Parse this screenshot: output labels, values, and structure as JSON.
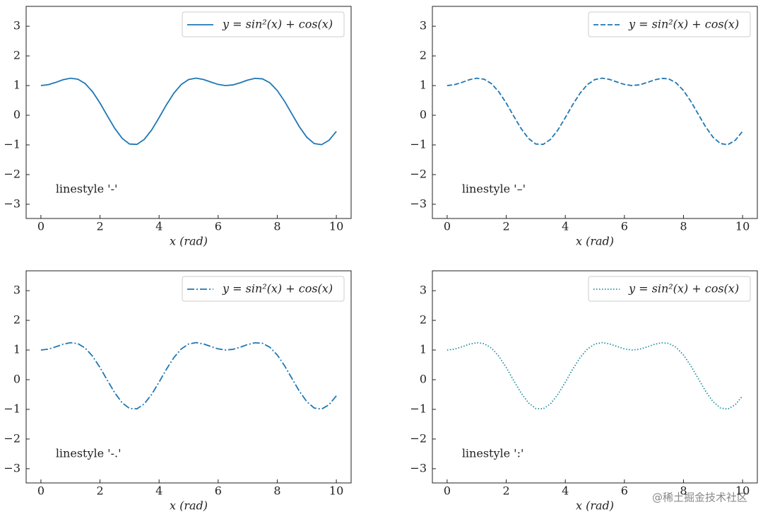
{
  "chart_data": [
    {
      "type": "line",
      "xlabel": "x (rad)",
      "annotation": "linestyle '-'",
      "legend": "upper right",
      "grid": false,
      "xlim": [
        -0.5,
        10.5
      ],
      "ylim": [
        -3.48,
        3.67
      ],
      "xticks": [
        0,
        2,
        4,
        6,
        8,
        10
      ],
      "yticks": [
        {
          "value": -3,
          "label": "−3"
        },
        {
          "value": -2,
          "label": "−2"
        },
        {
          "value": -1,
          "label": "−1"
        },
        0,
        1,
        2,
        3
      ],
      "x": [
        0,
        0.25,
        0.5,
        0.75,
        1,
        1.25,
        1.5,
        1.75,
        2,
        2.25,
        2.5,
        2.75,
        3,
        3.25,
        3.5,
        3.75,
        4,
        4.25,
        4.5,
        4.75,
        5,
        5.25,
        5.5,
        5.75,
        6,
        6.25,
        6.5,
        6.75,
        7,
        7.25,
        7.5,
        7.75,
        8,
        8.25,
        8.5,
        8.75,
        9,
        9.25,
        9.5,
        9.75,
        10
      ],
      "series": [
        {
          "name": "y = sin²(x) + cos(x)",
          "color": "#1f77b4",
          "linestyle": "-",
          "values": [
            1,
            1.03,
            1.107,
            1.196,
            1.248,
            1.216,
            1.066,
            0.79,
            0.411,
            -0.023,
            -0.443,
            -0.779,
            -0.97,
            -0.982,
            -0.813,
            -0.494,
            -0.081,
            0.355,
            0.745,
            1.036,
            1.203,
            1.25,
            1.206,
            1.12,
            1.038,
            1.001,
            1.023,
            1.096,
            1.186,
            1.245,
            1.226,
            1.093,
            0.833,
            0.466,
            0.036,
            -0.391,
            -0.741,
            -0.954,
            -0.992,
            -0.846,
            -0.543
          ]
        }
      ]
    },
    {
      "type": "line",
      "xlabel": "x (rad)",
      "annotation": "linestyle '–'",
      "legend": "upper right",
      "grid": false,
      "xlim": [
        -0.5,
        10.5
      ],
      "ylim": [
        -3.48,
        3.67
      ],
      "xticks": [
        0,
        2,
        4,
        6,
        8,
        10
      ],
      "yticks": [
        {
          "value": -3,
          "label": "−3"
        },
        {
          "value": -2,
          "label": "−2"
        },
        {
          "value": -1,
          "label": "−1"
        },
        0,
        1,
        2,
        3
      ],
      "x": [
        0,
        0.25,
        0.5,
        0.75,
        1,
        1.25,
        1.5,
        1.75,
        2,
        2.25,
        2.5,
        2.75,
        3,
        3.25,
        3.5,
        3.75,
        4,
        4.25,
        4.5,
        4.75,
        5,
        5.25,
        5.5,
        5.75,
        6,
        6.25,
        6.5,
        6.75,
        7,
        7.25,
        7.5,
        7.75,
        8,
        8.25,
        8.5,
        8.75,
        9,
        9.25,
        9.5,
        9.75,
        10
      ],
      "series": [
        {
          "name": "y = sin²(x) + cos(x)",
          "color": "#1f77b4",
          "linestyle": "--",
          "values": [
            1,
            1.03,
            1.107,
            1.196,
            1.248,
            1.216,
            1.066,
            0.79,
            0.411,
            -0.023,
            -0.443,
            -0.779,
            -0.97,
            -0.982,
            -0.813,
            -0.494,
            -0.081,
            0.355,
            0.745,
            1.036,
            1.203,
            1.25,
            1.206,
            1.12,
            1.038,
            1.001,
            1.023,
            1.096,
            1.186,
            1.245,
            1.226,
            1.093,
            0.833,
            0.466,
            0.036,
            -0.391,
            -0.741,
            -0.954,
            -0.992,
            -0.846,
            -0.543
          ]
        }
      ]
    },
    {
      "type": "line",
      "xlabel": "x (rad)",
      "annotation": "linestyle '-.'",
      "legend": "upper right",
      "grid": false,
      "xlim": [
        -0.5,
        10.5
      ],
      "ylim": [
        -3.48,
        3.67
      ],
      "xticks": [
        0,
        2,
        4,
        6,
        8,
        10
      ],
      "yticks": [
        {
          "value": -3,
          "label": "−3"
        },
        {
          "value": -2,
          "label": "−2"
        },
        {
          "value": -1,
          "label": "−1"
        },
        0,
        1,
        2,
        3
      ],
      "x": [
        0,
        0.25,
        0.5,
        0.75,
        1,
        1.25,
        1.5,
        1.75,
        2,
        2.25,
        2.5,
        2.75,
        3,
        3.25,
        3.5,
        3.75,
        4,
        4.25,
        4.5,
        4.75,
        5,
        5.25,
        5.5,
        5.75,
        6,
        6.25,
        6.5,
        6.75,
        7,
        7.25,
        7.5,
        7.75,
        8,
        8.25,
        8.5,
        8.75,
        9,
        9.25,
        9.5,
        9.75,
        10
      ],
      "series": [
        {
          "name": "y = sin²(x) + cos(x)",
          "color": "#1f77b4",
          "linestyle": "-.",
          "values": [
            1,
            1.03,
            1.107,
            1.196,
            1.248,
            1.216,
            1.066,
            0.79,
            0.411,
            -0.023,
            -0.443,
            -0.779,
            -0.97,
            -0.982,
            -0.813,
            -0.494,
            -0.081,
            0.355,
            0.745,
            1.036,
            1.203,
            1.25,
            1.206,
            1.12,
            1.038,
            1.001,
            1.023,
            1.096,
            1.186,
            1.245,
            1.226,
            1.093,
            0.833,
            0.466,
            0.036,
            -0.391,
            -0.741,
            -0.954,
            -0.992,
            -0.846,
            -0.543
          ]
        }
      ]
    },
    {
      "type": "line",
      "xlabel": "x (rad)",
      "annotation": "linestyle ':'",
      "legend": "upper right",
      "grid": false,
      "xlim": [
        -0.5,
        10.5
      ],
      "ylim": [
        -3.48,
        3.67
      ],
      "xticks": [
        0,
        2,
        4,
        6,
        8,
        10
      ],
      "yticks": [
        {
          "value": -3,
          "label": "−3"
        },
        {
          "value": -2,
          "label": "−2"
        },
        {
          "value": -1,
          "label": "−1"
        },
        0,
        1,
        2,
        3
      ],
      "x": [
        0,
        0.25,
        0.5,
        0.75,
        1,
        1.25,
        1.5,
        1.75,
        2,
        2.25,
        2.5,
        2.75,
        3,
        3.25,
        3.5,
        3.75,
        4,
        4.25,
        4.5,
        4.75,
        5,
        5.25,
        5.5,
        5.75,
        6,
        6.25,
        6.5,
        6.75,
        7,
        7.25,
        7.5,
        7.75,
        8,
        8.25,
        8.5,
        8.75,
        9,
        9.25,
        9.5,
        9.75,
        10
      ],
      "series": [
        {
          "name": "y = sin²(x) + cos(x)",
          "color": "#1f8fa0",
          "linestyle": ":",
          "values": [
            1,
            1.03,
            1.107,
            1.196,
            1.248,
            1.216,
            1.066,
            0.79,
            0.411,
            -0.023,
            -0.443,
            -0.779,
            -0.97,
            -0.982,
            -0.813,
            -0.494,
            -0.081,
            0.355,
            0.745,
            1.036,
            1.203,
            1.25,
            1.206,
            1.12,
            1.038,
            1.001,
            1.023,
            1.096,
            1.186,
            1.245,
            1.226,
            1.093,
            0.833,
            0.466,
            0.036,
            -0.391,
            -0.741,
            -0.954,
            -0.992,
            -0.846,
            -0.543
          ]
        }
      ]
    }
  ],
  "watermark": "@稀土掘金技术社区"
}
